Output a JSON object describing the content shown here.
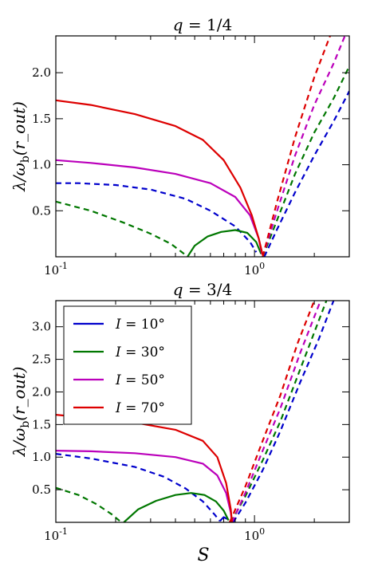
{
  "figure": {
    "shared_xlabel": "S"
  },
  "chart_data": [
    {
      "type": "line",
      "title": "q = 1/4",
      "xlabel": "",
      "ylabel": "λ/ω_b(r_out)",
      "xscale": "log",
      "xlim": [
        0.1,
        3.0
      ],
      "ylim": [
        0.0,
        2.4
      ],
      "x_ticks": [
        {
          "value": 0.1,
          "label": "10^-1"
        },
        {
          "value": 1.0,
          "label": "10^0"
        }
      ],
      "y_ticks": [
        {
          "value": 0.5,
          "label": "0.5"
        },
        {
          "value": 1.0,
          "label": "1.0"
        },
        {
          "value": 1.5,
          "label": "1.5"
        },
        {
          "value": 2.0,
          "label": "2.0"
        }
      ],
      "series": [
        {
          "color": "#0000cc",
          "style": "dashed",
          "points": [
            [
              0.1,
              0.8
            ],
            [
              0.13,
              0.8
            ],
            [
              0.2,
              0.78
            ],
            [
              0.3,
              0.73
            ],
            [
              0.45,
              0.63
            ],
            [
              0.6,
              0.5
            ],
            [
              0.8,
              0.33
            ],
            [
              0.95,
              0.16
            ],
            [
              1.02,
              0.05
            ]
          ]
        },
        {
          "color": "#0000cc",
          "style": "dashed",
          "points": [
            [
              1.12,
              0.0
            ],
            [
              1.3,
              0.3
            ],
            [
              1.6,
              0.7
            ],
            [
              2.0,
              1.1
            ],
            [
              2.5,
              1.47
            ],
            [
              3.0,
              1.8
            ]
          ]
        },
        {
          "color": "#007700",
          "style": "dashed",
          "points": [
            [
              0.1,
              0.6
            ],
            [
              0.15,
              0.5
            ],
            [
              0.22,
              0.37
            ],
            [
              0.3,
              0.25
            ],
            [
              0.38,
              0.14
            ],
            [
              0.45,
              0.02
            ]
          ]
        },
        {
          "color": "#007700",
          "style": "solid",
          "points": [
            [
              0.46,
              0.0
            ],
            [
              0.5,
              0.12
            ],
            [
              0.58,
              0.22
            ],
            [
              0.68,
              0.27
            ],
            [
              0.8,
              0.29
            ],
            [
              0.92,
              0.26
            ],
            [
              1.02,
              0.16
            ],
            [
              1.08,
              0.03
            ]
          ]
        },
        {
          "color": "#007700",
          "style": "dashed",
          "points": [
            [
              1.1,
              0.0
            ],
            [
              1.3,
              0.4
            ],
            [
              1.6,
              0.9
            ],
            [
              2.0,
              1.35
            ],
            [
              2.5,
              1.72
            ],
            [
              3.0,
              2.07
            ]
          ]
        },
        {
          "color": "#bb00bb",
          "style": "solid",
          "points": [
            [
              0.1,
              1.05
            ],
            [
              0.15,
              1.02
            ],
            [
              0.25,
              0.97
            ],
            [
              0.4,
              0.9
            ],
            [
              0.6,
              0.8
            ],
            [
              0.8,
              0.65
            ],
            [
              0.95,
              0.45
            ],
            [
              1.05,
              0.2
            ],
            [
              1.09,
              0.03
            ]
          ]
        },
        {
          "color": "#bb00bb",
          "style": "dashed",
          "points": [
            [
              1.1,
              0.0
            ],
            [
              1.3,
              0.5
            ],
            [
              1.6,
              1.1
            ],
            [
              2.0,
              1.65
            ],
            [
              2.5,
              2.1
            ],
            [
              2.85,
              2.4
            ]
          ]
        },
        {
          "color": "#dd0000",
          "style": "solid",
          "points": [
            [
              0.1,
              1.7
            ],
            [
              0.15,
              1.65
            ],
            [
              0.25,
              1.55
            ],
            [
              0.4,
              1.42
            ],
            [
              0.55,
              1.27
            ],
            [
              0.7,
              1.05
            ],
            [
              0.85,
              0.75
            ],
            [
              0.97,
              0.45
            ],
            [
              1.05,
              0.2
            ],
            [
              1.1,
              0.02
            ]
          ]
        },
        {
          "color": "#dd0000",
          "style": "dashed",
          "points": [
            [
              1.1,
              0.0
            ],
            [
              1.3,
              0.6
            ],
            [
              1.6,
              1.3
            ],
            [
              2.0,
              1.95
            ],
            [
              2.4,
              2.4
            ]
          ]
        }
      ]
    },
    {
      "type": "line",
      "title": "q = 3/4",
      "xlabel": "S",
      "ylabel": "λ/ω_b(r_out)",
      "xscale": "log",
      "xlim": [
        0.1,
        3.0
      ],
      "ylim": [
        0.0,
        3.4
      ],
      "x_ticks": [
        {
          "value": 0.1,
          "label": "10^-1"
        },
        {
          "value": 1.0,
          "label": "10^0"
        }
      ],
      "y_ticks": [
        {
          "value": 0.5,
          "label": "0.5"
        },
        {
          "value": 1.0,
          "label": "1.0"
        },
        {
          "value": 1.5,
          "label": "1.5"
        },
        {
          "value": 2.0,
          "label": "2.0"
        },
        {
          "value": 2.5,
          "label": "2.5"
        },
        {
          "value": 3.0,
          "label": "3.0"
        }
      ],
      "legend": {
        "placement": "top-left",
        "entries": [
          {
            "label": "I = 10°",
            "color": "#0000cc"
          },
          {
            "label": "I = 30°",
            "color": "#007700"
          },
          {
            "label": "I = 50°",
            "color": "#bb00bb"
          },
          {
            "label": "I = 70°",
            "color": "#dd0000"
          }
        ]
      },
      "series": [
        {
          "color": "#0000cc",
          "style": "dashed",
          "points": [
            [
              0.1,
              1.05
            ],
            [
              0.15,
              0.98
            ],
            [
              0.25,
              0.85
            ],
            [
              0.35,
              0.7
            ],
            [
              0.45,
              0.52
            ],
            [
              0.55,
              0.32
            ],
            [
              0.63,
              0.12
            ],
            [
              0.67,
              0.02
            ]
          ]
        },
        {
          "color": "#0000cc",
          "style": "solid",
          "points": [
            [
              0.67,
              0.02
            ],
            [
              0.7,
              0.08
            ],
            [
              0.73,
              0.05
            ]
          ]
        },
        {
          "color": "#0000cc",
          "style": "dashed",
          "points": [
            [
              0.78,
              0.0
            ],
            [
              0.9,
              0.3
            ],
            [
              1.1,
              0.8
            ],
            [
              1.35,
              1.4
            ],
            [
              1.7,
              2.15
            ],
            [
              2.1,
              2.8
            ],
            [
              2.5,
              3.4
            ]
          ]
        },
        {
          "color": "#007700",
          "style": "dashed",
          "points": [
            [
              0.1,
              0.53
            ],
            [
              0.13,
              0.42
            ],
            [
              0.16,
              0.28
            ],
            [
              0.19,
              0.13
            ],
            [
              0.21,
              0.02
            ]
          ]
        },
        {
          "color": "#007700",
          "style": "solid",
          "points": [
            [
              0.22,
              0.0
            ],
            [
              0.26,
              0.2
            ],
            [
              0.32,
              0.33
            ],
            [
              0.4,
              0.42
            ],
            [
              0.48,
              0.45
            ],
            [
              0.56,
              0.42
            ],
            [
              0.64,
              0.32
            ],
            [
              0.7,
              0.18
            ],
            [
              0.74,
              0.03
            ]
          ]
        },
        {
          "color": "#007700",
          "style": "dashed",
          "points": [
            [
              0.76,
              0.0
            ],
            [
              0.9,
              0.4
            ],
            [
              1.1,
              0.95
            ],
            [
              1.35,
              1.55
            ],
            [
              1.7,
              2.35
            ],
            [
              2.3,
              3.4
            ]
          ]
        },
        {
          "color": "#bb00bb",
          "style": "solid",
          "points": [
            [
              0.1,
              1.1
            ],
            [
              0.15,
              1.09
            ],
            [
              0.25,
              1.06
            ],
            [
              0.4,
              1.0
            ],
            [
              0.55,
              0.9
            ],
            [
              0.65,
              0.72
            ],
            [
              0.72,
              0.45
            ],
            [
              0.76,
              0.15
            ],
            [
              0.77,
              0.0
            ]
          ]
        },
        {
          "color": "#bb00bb",
          "style": "dashed",
          "points": [
            [
              0.77,
              0.0
            ],
            [
              0.9,
              0.45
            ],
            [
              1.1,
              1.1
            ],
            [
              1.35,
              1.75
            ],
            [
              1.7,
              2.6
            ],
            [
              2.15,
              3.4
            ]
          ]
        },
        {
          "color": "#dd0000",
          "style": "solid",
          "points": [
            [
              0.1,
              1.65
            ],
            [
              0.15,
              1.6
            ],
            [
              0.25,
              1.53
            ],
            [
              0.4,
              1.42
            ],
            [
              0.55,
              1.25
            ],
            [
              0.65,
              1.0
            ],
            [
              0.72,
              0.6
            ],
            [
              0.76,
              0.2
            ],
            [
              0.77,
              0.0
            ]
          ]
        },
        {
          "color": "#dd0000",
          "style": "dashed",
          "points": [
            [
              0.75,
              0.0
            ],
            [
              0.9,
              0.55
            ],
            [
              1.1,
              1.25
            ],
            [
              1.35,
              1.95
            ],
            [
              1.65,
              2.75
            ],
            [
              2.0,
              3.4
            ]
          ]
        }
      ]
    }
  ]
}
